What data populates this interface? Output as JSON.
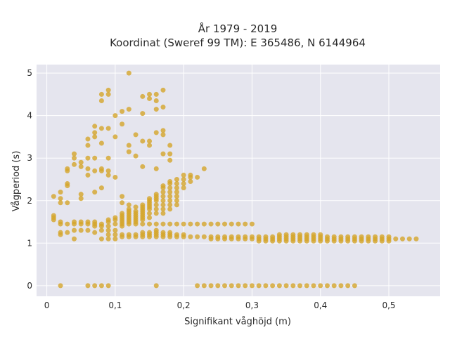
{
  "chart_data": {
    "type": "scatter",
    "title_line1": "År 1979 - 2019",
    "title_line2": "Koordinat (Sweref 99 TM): E 365486, N 6144964",
    "xlabel": "Signifikant våghöjd (m)",
    "ylabel": "Vågperiod (s)",
    "xlim": [
      -0.015,
      0.575
    ],
    "ylim": [
      -0.25,
      5.2
    ],
    "xticks": [
      0,
      0.1,
      0.2,
      0.3,
      0.4,
      0.5
    ],
    "xtick_labels": [
      "0",
      "0,1",
      "0,2",
      "0,3",
      "0,4",
      "0,5"
    ],
    "yticks": [
      0,
      1,
      2,
      3,
      4,
      5
    ],
    "ytick_labels": [
      "0",
      "1",
      "2",
      "3",
      "4",
      "5"
    ],
    "grid": true,
    "marker_color": "#D4A52A",
    "background_color": "#E5E5EE",
    "points": [
      [
        0.02,
        0
      ],
      [
        0.06,
        0
      ],
      [
        0.07,
        0
      ],
      [
        0.08,
        0
      ],
      [
        0.09,
        0
      ],
      [
        0.16,
        0
      ],
      [
        0.22,
        0
      ],
      [
        0.23,
        0
      ],
      [
        0.24,
        0
      ],
      [
        0.25,
        0
      ],
      [
        0.26,
        0
      ],
      [
        0.27,
        0
      ],
      [
        0.28,
        0
      ],
      [
        0.29,
        0
      ],
      [
        0.3,
        0
      ],
      [
        0.31,
        0
      ],
      [
        0.32,
        0
      ],
      [
        0.33,
        0
      ],
      [
        0.34,
        0
      ],
      [
        0.35,
        0
      ],
      [
        0.36,
        0
      ],
      [
        0.37,
        0
      ],
      [
        0.38,
        0
      ],
      [
        0.39,
        0
      ],
      [
        0.4,
        0
      ],
      [
        0.41,
        0
      ],
      [
        0.42,
        0
      ],
      [
        0.43,
        0
      ],
      [
        0.44,
        0
      ],
      [
        0.45,
        0
      ],
      [
        0.01,
        1.55
      ],
      [
        0.01,
        1.6
      ],
      [
        0.01,
        1.65
      ],
      [
        0.02,
        1.2
      ],
      [
        0.02,
        1.25
      ],
      [
        0.02,
        1.45
      ],
      [
        0.02,
        1.5
      ],
      [
        0.03,
        1.25
      ],
      [
        0.03,
        1.45
      ],
      [
        0.04,
        1.1
      ],
      [
        0.04,
        1.3
      ],
      [
        0.04,
        1.45
      ],
      [
        0.04,
        1.5
      ],
      [
        0.05,
        1.3
      ],
      [
        0.05,
        1.45
      ],
      [
        0.05,
        1.5
      ],
      [
        0.06,
        1.3
      ],
      [
        0.06,
        1.45
      ],
      [
        0.06,
        1.5
      ],
      [
        0.07,
        1.25
      ],
      [
        0.07,
        1.4
      ],
      [
        0.07,
        1.45
      ],
      [
        0.07,
        1.5
      ],
      [
        0.08,
        1.1
      ],
      [
        0.08,
        1.3
      ],
      [
        0.08,
        1.4
      ],
      [
        0.08,
        1.45
      ],
      [
        0.09,
        1.1
      ],
      [
        0.09,
        1.2
      ],
      [
        0.09,
        1.3
      ],
      [
        0.09,
        1.4
      ],
      [
        0.09,
        1.5
      ],
      [
        0.09,
        1.55
      ],
      [
        0.1,
        1.1
      ],
      [
        0.1,
        1.2
      ],
      [
        0.1,
        1.3
      ],
      [
        0.1,
        1.45
      ],
      [
        0.1,
        1.55
      ],
      [
        0.1,
        1.6
      ],
      [
        0.11,
        1.15
      ],
      [
        0.11,
        1.2
      ],
      [
        0.11,
        1.4
      ],
      [
        0.11,
        1.45
      ],
      [
        0.11,
        1.5
      ],
      [
        0.11,
        1.55
      ],
      [
        0.11,
        1.6
      ],
      [
        0.11,
        1.65
      ],
      [
        0.11,
        1.7
      ],
      [
        0.12,
        1.15
      ],
      [
        0.12,
        1.2
      ],
      [
        0.12,
        1.45
      ],
      [
        0.12,
        1.5
      ],
      [
        0.12,
        1.55
      ],
      [
        0.12,
        1.6
      ],
      [
        0.12,
        1.65
      ],
      [
        0.12,
        1.7
      ],
      [
        0.12,
        1.75
      ],
      [
        0.12,
        1.8
      ],
      [
        0.13,
        1.15
      ],
      [
        0.13,
        1.2
      ],
      [
        0.13,
        1.45
      ],
      [
        0.13,
        1.5
      ],
      [
        0.13,
        1.55
      ],
      [
        0.13,
        1.6
      ],
      [
        0.13,
        1.65
      ],
      [
        0.13,
        1.7
      ],
      [
        0.13,
        1.75
      ],
      [
        0.14,
        1.15
      ],
      [
        0.14,
        1.2
      ],
      [
        0.14,
        1.25
      ],
      [
        0.14,
        1.45
      ],
      [
        0.14,
        1.55
      ],
      [
        0.14,
        1.6
      ],
      [
        0.14,
        1.65
      ],
      [
        0.14,
        1.7
      ],
      [
        0.14,
        1.75
      ],
      [
        0.14,
        1.8
      ],
      [
        0.14,
        1.85
      ],
      [
        0.14,
        1.9
      ],
      [
        0.15,
        1.15
      ],
      [
        0.15,
        1.2
      ],
      [
        0.15,
        1.25
      ],
      [
        0.15,
        1.45
      ],
      [
        0.15,
        1.6
      ],
      [
        0.15,
        1.7
      ],
      [
        0.15,
        1.8
      ],
      [
        0.15,
        1.85
      ],
      [
        0.15,
        1.9
      ],
      [
        0.15,
        1.95
      ],
      [
        0.15,
        2.0
      ],
      [
        0.15,
        2.05
      ],
      [
        0.16,
        1.15
      ],
      [
        0.16,
        1.2
      ],
      [
        0.16,
        1.25
      ],
      [
        0.16,
        1.3
      ],
      [
        0.16,
        1.45
      ],
      [
        0.16,
        1.7
      ],
      [
        0.16,
        1.8
      ],
      [
        0.16,
        1.9
      ],
      [
        0.16,
        2.0
      ],
      [
        0.16,
        2.05
      ],
      [
        0.16,
        2.1
      ],
      [
        0.16,
        2.15
      ],
      [
        0.17,
        1.15
      ],
      [
        0.17,
        1.2
      ],
      [
        0.17,
        1.25
      ],
      [
        0.17,
        1.45
      ],
      [
        0.17,
        1.7
      ],
      [
        0.17,
        1.8
      ],
      [
        0.17,
        1.9
      ],
      [
        0.17,
        2.0
      ],
      [
        0.17,
        2.1
      ],
      [
        0.17,
        2.2
      ],
      [
        0.17,
        2.3
      ],
      [
        0.17,
        2.35
      ],
      [
        0.18,
        1.15
      ],
      [
        0.18,
        1.2
      ],
      [
        0.18,
        1.25
      ],
      [
        0.18,
        1.45
      ],
      [
        0.18,
        1.8
      ],
      [
        0.18,
        1.9
      ],
      [
        0.18,
        2.0
      ],
      [
        0.18,
        2.1
      ],
      [
        0.18,
        2.2
      ],
      [
        0.18,
        2.3
      ],
      [
        0.18,
        2.4
      ],
      [
        0.18,
        2.45
      ],
      [
        0.19,
        1.15
      ],
      [
        0.19,
        1.2
      ],
      [
        0.19,
        1.45
      ],
      [
        0.19,
        1.9
      ],
      [
        0.19,
        2.0
      ],
      [
        0.19,
        2.1
      ],
      [
        0.19,
        2.2
      ],
      [
        0.19,
        2.3
      ],
      [
        0.19,
        2.4
      ],
      [
        0.19,
        2.5
      ],
      [
        0.2,
        1.15
      ],
      [
        0.2,
        1.2
      ],
      [
        0.2,
        1.45
      ],
      [
        0.2,
        2.3
      ],
      [
        0.2,
        2.4
      ],
      [
        0.2,
        2.5
      ],
      [
        0.2,
        2.6
      ],
      [
        0.21,
        1.15
      ],
      [
        0.21,
        1.45
      ],
      [
        0.21,
        2.45
      ],
      [
        0.21,
        2.55
      ],
      [
        0.21,
        2.6
      ],
      [
        0.22,
        1.15
      ],
      [
        0.22,
        1.45
      ],
      [
        0.22,
        2.55
      ],
      [
        0.23,
        2.75
      ],
      [
        0.23,
        1.15
      ],
      [
        0.23,
        1.45
      ],
      [
        0.24,
        1.1
      ],
      [
        0.24,
        1.15
      ],
      [
        0.24,
        1.45
      ],
      [
        0.25,
        1.1
      ],
      [
        0.25,
        1.15
      ],
      [
        0.25,
        1.45
      ],
      [
        0.26,
        1.1
      ],
      [
        0.26,
        1.15
      ],
      [
        0.26,
        1.45
      ],
      [
        0.27,
        1.1
      ],
      [
        0.27,
        1.15
      ],
      [
        0.27,
        1.45
      ],
      [
        0.28,
        1.1
      ],
      [
        0.28,
        1.15
      ],
      [
        0.28,
        1.45
      ],
      [
        0.29,
        1.1
      ],
      [
        0.29,
        1.15
      ],
      [
        0.29,
        1.45
      ],
      [
        0.3,
        1.1
      ],
      [
        0.3,
        1.15
      ],
      [
        0.3,
        1.45
      ],
      [
        0.31,
        1.05
      ],
      [
        0.31,
        1.1
      ],
      [
        0.31,
        1.15
      ],
      [
        0.32,
        1.05
      ],
      [
        0.32,
        1.1
      ],
      [
        0.32,
        1.15
      ],
      [
        0.33,
        1.05
      ],
      [
        0.33,
        1.1
      ],
      [
        0.33,
        1.15
      ],
      [
        0.34,
        1.05
      ],
      [
        0.34,
        1.1
      ],
      [
        0.34,
        1.15
      ],
      [
        0.34,
        1.2
      ],
      [
        0.35,
        1.05
      ],
      [
        0.35,
        1.1
      ],
      [
        0.35,
        1.15
      ],
      [
        0.35,
        1.2
      ],
      [
        0.36,
        1.05
      ],
      [
        0.36,
        1.1
      ],
      [
        0.36,
        1.15
      ],
      [
        0.36,
        1.2
      ],
      [
        0.37,
        1.05
      ],
      [
        0.37,
        1.1
      ],
      [
        0.37,
        1.15
      ],
      [
        0.37,
        1.2
      ],
      [
        0.38,
        1.05
      ],
      [
        0.38,
        1.1
      ],
      [
        0.38,
        1.15
      ],
      [
        0.38,
        1.2
      ],
      [
        0.39,
        1.05
      ],
      [
        0.39,
        1.1
      ],
      [
        0.39,
        1.15
      ],
      [
        0.39,
        1.2
      ],
      [
        0.4,
        1.05
      ],
      [
        0.4,
        1.1
      ],
      [
        0.4,
        1.15
      ],
      [
        0.4,
        1.2
      ],
      [
        0.41,
        1.05
      ],
      [
        0.41,
        1.1
      ],
      [
        0.41,
        1.15
      ],
      [
        0.42,
        1.05
      ],
      [
        0.42,
        1.1
      ],
      [
        0.42,
        1.15
      ],
      [
        0.43,
        1.05
      ],
      [
        0.43,
        1.1
      ],
      [
        0.43,
        1.15
      ],
      [
        0.44,
        1.05
      ],
      [
        0.44,
        1.1
      ],
      [
        0.44,
        1.15
      ],
      [
        0.45,
        1.05
      ],
      [
        0.45,
        1.1
      ],
      [
        0.45,
        1.15
      ],
      [
        0.46,
        1.05
      ],
      [
        0.46,
        1.1
      ],
      [
        0.46,
        1.15
      ],
      [
        0.47,
        1.05
      ],
      [
        0.47,
        1.1
      ],
      [
        0.47,
        1.15
      ],
      [
        0.48,
        1.05
      ],
      [
        0.48,
        1.1
      ],
      [
        0.48,
        1.15
      ],
      [
        0.49,
        1.05
      ],
      [
        0.49,
        1.1
      ],
      [
        0.49,
        1.15
      ],
      [
        0.5,
        1.05
      ],
      [
        0.5,
        1.1
      ],
      [
        0.5,
        1.15
      ],
      [
        0.51,
        1.1
      ],
      [
        0.52,
        1.1
      ],
      [
        0.53,
        1.1
      ],
      [
        0.54,
        1.1
      ],
      [
        0.01,
        2.1
      ],
      [
        0.02,
        2.05
      ],
      [
        0.02,
        2.2
      ],
      [
        0.02,
        1.95
      ],
      [
        0.03,
        1.95
      ],
      [
        0.03,
        2.35
      ],
      [
        0.03,
        2.4
      ],
      [
        0.03,
        2.7
      ],
      [
        0.03,
        2.75
      ],
      [
        0.04,
        2.85
      ],
      [
        0.04,
        3.0
      ],
      [
        0.04,
        3.1
      ],
      [
        0.05,
        2.05
      ],
      [
        0.05,
        2.15
      ],
      [
        0.05,
        2.8
      ],
      [
        0.05,
        2.9
      ],
      [
        0.06,
        2.6
      ],
      [
        0.06,
        2.75
      ],
      [
        0.06,
        3.0
      ],
      [
        0.06,
        3.3
      ],
      [
        0.06,
        3.45
      ],
      [
        0.07,
        2.2
      ],
      [
        0.07,
        2.7
      ],
      [
        0.07,
        3.0
      ],
      [
        0.07,
        3.5
      ],
      [
        0.07,
        3.6
      ],
      [
        0.07,
        3.75
      ],
      [
        0.08,
        2.3
      ],
      [
        0.08,
        2.7
      ],
      [
        0.08,
        2.75
      ],
      [
        0.08,
        3.35
      ],
      [
        0.08,
        3.7
      ],
      [
        0.08,
        4.35
      ],
      [
        0.08,
        4.5
      ],
      [
        0.09,
        2.6
      ],
      [
        0.09,
        2.7
      ],
      [
        0.09,
        3.0
      ],
      [
        0.09,
        3.7
      ],
      [
        0.09,
        4.5
      ],
      [
        0.09,
        4.6
      ],
      [
        0.1,
        2.55
      ],
      [
        0.1,
        3.5
      ],
      [
        0.1,
        4.0
      ],
      [
        0.11,
        1.95
      ],
      [
        0.11,
        2.1
      ],
      [
        0.11,
        3.8
      ],
      [
        0.11,
        4.1
      ],
      [
        0.12,
        1.9
      ],
      [
        0.12,
        3.15
      ],
      [
        0.12,
        3.3
      ],
      [
        0.12,
        4.15
      ],
      [
        0.12,
        5.0
      ],
      [
        0.13,
        1.85
      ],
      [
        0.13,
        3.05
      ],
      [
        0.13,
        3.55
      ],
      [
        0.14,
        2.8
      ],
      [
        0.14,
        3.4
      ],
      [
        0.14,
        4.05
      ],
      [
        0.14,
        4.45
      ],
      [
        0.15,
        3.3
      ],
      [
        0.15,
        3.4
      ],
      [
        0.15,
        4.4
      ],
      [
        0.15,
        4.5
      ],
      [
        0.16,
        2.75
      ],
      [
        0.16,
        3.6
      ],
      [
        0.16,
        4.15
      ],
      [
        0.16,
        4.35
      ],
      [
        0.16,
        4.5
      ],
      [
        0.17,
        3.1
      ],
      [
        0.17,
        3.55
      ],
      [
        0.17,
        3.65
      ],
      [
        0.17,
        4.2
      ],
      [
        0.17,
        4.6
      ],
      [
        0.18,
        2.95
      ],
      [
        0.18,
        3.1
      ],
      [
        0.18,
        3.3
      ]
    ]
  }
}
